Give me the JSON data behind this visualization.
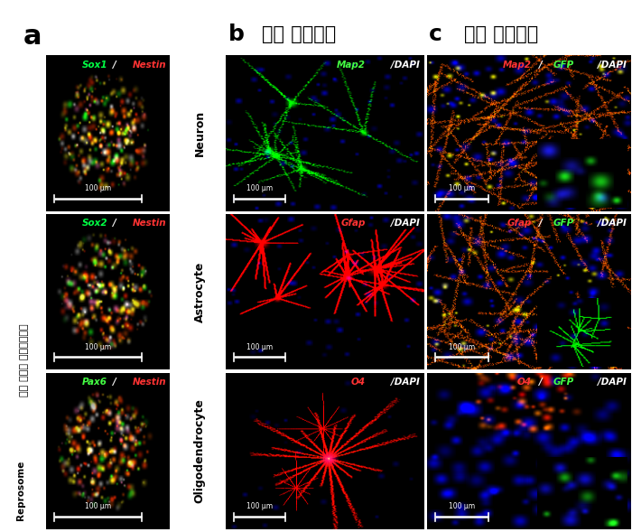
{
  "title_a": "a",
  "title_b": "b",
  "title_c": "c",
  "label_b": "체외 분화유도",
  "label_c": "체내 분화유도",
  "side_label_korean": "으로 유도된 신경전구세포",
  "side_label_latin": "Reprosome",
  "row_labels": [
    "Neuron",
    "Astrocyte",
    "Oligodendrocyte"
  ],
  "col_a_labels": [
    [
      [
        "Sox1",
        "/",
        "Nestin"
      ],
      [
        "#00ff44",
        "#ffffff",
        "#ff3333"
      ]
    ],
    [
      [
        "Sox2",
        "/",
        "Nestin"
      ],
      [
        "#00ff44",
        "#ffffff",
        "#ff3333"
      ]
    ],
    [
      [
        "Pax6",
        "/",
        "Nestin"
      ],
      [
        "#44ff44",
        "#ffffff",
        "#ff3333"
      ]
    ]
  ],
  "col_b_labels": [
    [
      [
        "Map2",
        "/DAPI"
      ],
      [
        "#44ff44",
        "#ffffff"
      ]
    ],
    [
      [
        "Gfap",
        "/DAPI"
      ],
      [
        "#ff3333",
        "#ffffff"
      ]
    ],
    [
      [
        "O4",
        "/DAPI"
      ],
      [
        "#ff3333",
        "#ffffff"
      ]
    ]
  ],
  "col_c_labels": [
    [
      [
        "Map2",
        "/",
        "GFP",
        "/DAPI"
      ],
      [
        "#ff3333",
        "#ffffff",
        "#44ff44",
        "#ffffff"
      ]
    ],
    [
      [
        "Gfap",
        "/",
        "GFP",
        "/DAPI"
      ],
      [
        "#ff3333",
        "#ffffff",
        "#44ff44",
        "#ffffff"
      ]
    ],
    [
      [
        "O4",
        "/",
        "GFP",
        "/DAPI"
      ],
      [
        "#ff3333",
        "#ffffff",
        "#44ff44",
        "#ffffff"
      ]
    ]
  ],
  "scale_bar_text": "100 μm",
  "background_color": "#ffffff",
  "figure_width": 7.0,
  "figure_height": 5.89
}
